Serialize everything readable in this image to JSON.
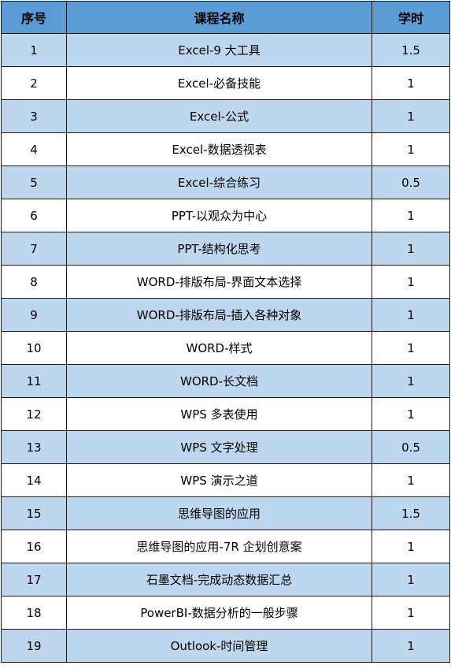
{
  "header": {
    "no": "序号",
    "name": "课程名称",
    "hours": "学时"
  },
  "rows": [
    {
      "no": "1",
      "name": "Excel-9 大工具",
      "hours": "1.5"
    },
    {
      "no": "2",
      "name": "Excel-必备技能",
      "hours": "1"
    },
    {
      "no": "3",
      "name": "Excel-公式",
      "hours": "1"
    },
    {
      "no": "4",
      "name": "Excel-数据透视表",
      "hours": "1"
    },
    {
      "no": "5",
      "name": "Excel-综合练习",
      "hours": "0.5"
    },
    {
      "no": "6",
      "name": "PPT-以观众为中心",
      "hours": "1"
    },
    {
      "no": "7",
      "name": "PPT-结构化思考",
      "hours": "1"
    },
    {
      "no": "8",
      "name": "WORD-排版布局-界面文本选择",
      "hours": "1"
    },
    {
      "no": "9",
      "name": "WORD-排版布局-插入各种对象",
      "hours": "1"
    },
    {
      "no": "10",
      "name": "WORD-样式",
      "hours": "1"
    },
    {
      "no": "11",
      "name": "WORD-长文档",
      "hours": "1"
    },
    {
      "no": "12",
      "name": "WPS 多表使用",
      "hours": "1"
    },
    {
      "no": "13",
      "name": "WPS 文字处理",
      "hours": "0.5"
    },
    {
      "no": "14",
      "name": "WPS 演示之道",
      "hours": "1"
    },
    {
      "no": "15",
      "name": "思维导图的应用",
      "hours": "1.5"
    },
    {
      "no": "16",
      "name": "思维导图的应用-7R 企划创意案",
      "hours": "1"
    },
    {
      "no": "17",
      "name": "石墨文档-完成动态数据汇总",
      "hours": "1"
    },
    {
      "no": "18",
      "name": "PowerBI-数据分析的一般步骤",
      "hours": "1"
    },
    {
      "no": "19",
      "name": "Outlook-时间管理",
      "hours": "1"
    }
  ],
  "colors": {
    "header_bg": "#5b9bd5",
    "band_bg": "#bdd7ee",
    "plain_bg": "#ffffff",
    "border": "#1a1a1a"
  }
}
